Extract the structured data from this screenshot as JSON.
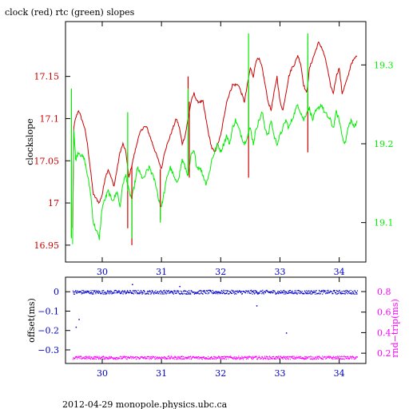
{
  "title": "clock (red) rtc (green) slopes",
  "footer": "2012-04-29 monopole.physics.ubc.ca",
  "colors": {
    "clock": "#cc0000",
    "rtc": "#00ee00",
    "offset": "#0000cc",
    "rndtrip": "#ff00ff",
    "axis": "#000000"
  },
  "chart_data": [
    {
      "type": "line",
      "title": "clock (red) rtc (green) slopes",
      "xlim": [
        29.38,
        34.45
      ],
      "x_ticks": [
        30,
        31,
        32,
        33,
        34
      ],
      "x_tick_labels": [
        "30",
        "31",
        "32",
        "33",
        "34"
      ],
      "ylabel_left": "clockslope",
      "ylim_left": [
        16.93,
        17.215
      ],
      "y_ticks_left": [
        16.95,
        17,
        17.05,
        17.1,
        17.15
      ],
      "y_tick_labels_left": [
        "16.95",
        "17",
        "17.05",
        "17.1",
        "17.15"
      ],
      "ylim_right": [
        19.05,
        19.355
      ],
      "y_ticks_right": [
        19.1,
        19.2,
        19.3
      ],
      "y_tick_labels_right": [
        "19.1",
        "19.2",
        "19.3"
      ],
      "series": [
        {
          "name": "clock",
          "axis": "left",
          "x": [
            29.5,
            29.52,
            29.55,
            29.6,
            29.65,
            29.7,
            29.75,
            29.8,
            29.85,
            29.9,
            29.95,
            30.0,
            30.05,
            30.1,
            30.15,
            30.2,
            30.25,
            30.3,
            30.35,
            30.4,
            30.45,
            30.5,
            30.55,
            30.6,
            30.65,
            30.7,
            30.75,
            30.8,
            30.85,
            30.9,
            30.95,
            31.0,
            31.05,
            31.1,
            31.15,
            31.2,
            31.25,
            31.3,
            31.35,
            31.4,
            31.45,
            31.5,
            31.55,
            31.6,
            31.65,
            31.7,
            31.75,
            31.8,
            31.85,
            31.9,
            31.95,
            32.0,
            32.05,
            32.1,
            32.15,
            32.2,
            32.25,
            32.3,
            32.35,
            32.4,
            32.45,
            32.5,
            32.55,
            32.6,
            32.65,
            32.7,
            32.75,
            32.8,
            32.85,
            32.9,
            32.95,
            33.0,
            33.05,
            33.1,
            33.15,
            33.2,
            33.25,
            33.3,
            33.35,
            33.4,
            33.45,
            33.5,
            33.55,
            33.6,
            33.65,
            33.7,
            33.75,
            33.8,
            33.85,
            33.9,
            33.95,
            34.0,
            34.05,
            34.1,
            34.15,
            34.2,
            34.25,
            34.3
          ],
          "y": [
            16.97,
            17.09,
            17.1,
            17.11,
            17.1,
            17.09,
            17.07,
            17.04,
            17.01,
            17.005,
            17.0,
            17.01,
            17.03,
            17.04,
            17.03,
            17.02,
            17.04,
            17.06,
            17.07,
            17.06,
            17.03,
            17.045,
            17.06,
            17.075,
            17.085,
            17.09,
            17.09,
            17.08,
            17.07,
            17.06,
            17.05,
            17.04,
            17.06,
            17.07,
            17.08,
            17.09,
            17.1,
            17.09,
            17.07,
            17.08,
            17.1,
            17.12,
            17.13,
            17.12,
            17.12,
            17.12,
            17.1,
            17.08,
            17.065,
            17.06,
            17.07,
            17.08,
            17.1,
            17.12,
            17.13,
            17.14,
            17.14,
            17.14,
            17.13,
            17.12,
            17.14,
            17.16,
            17.15,
            17.17,
            17.17,
            17.16,
            17.14,
            17.12,
            17.11,
            17.13,
            17.15,
            17.12,
            17.11,
            17.13,
            17.15,
            17.16,
            17.165,
            17.175,
            17.165,
            17.14,
            17.13,
            17.16,
            17.17,
            17.18,
            17.19,
            17.185,
            17.175,
            17.16,
            17.14,
            17.13,
            17.15,
            17.16,
            17.13,
            17.14,
            17.15,
            17.165,
            17.17,
            17.175
          ]
        },
        {
          "name": "rtc",
          "axis": "right",
          "x": [
            29.5,
            29.52,
            29.55,
            29.6,
            29.65,
            29.7,
            29.75,
            29.8,
            29.85,
            29.9,
            29.95,
            30.0,
            30.05,
            30.1,
            30.15,
            30.2,
            30.25,
            30.3,
            30.35,
            30.4,
            30.45,
            30.5,
            30.55,
            30.6,
            30.65,
            30.7,
            30.75,
            30.8,
            30.85,
            30.9,
            30.95,
            31.0,
            31.05,
            31.1,
            31.15,
            31.2,
            31.25,
            31.3,
            31.35,
            31.4,
            31.45,
            31.5,
            31.55,
            31.6,
            31.65,
            31.7,
            31.75,
            31.8,
            31.85,
            31.9,
            31.95,
            32.0,
            32.05,
            32.1,
            32.15,
            32.2,
            32.25,
            32.3,
            32.35,
            32.4,
            32.45,
            32.5,
            32.55,
            32.6,
            32.65,
            32.7,
            32.75,
            32.8,
            32.85,
            32.9,
            32.95,
            33.0,
            33.05,
            33.1,
            33.15,
            33.2,
            33.25,
            33.3,
            33.35,
            33.4,
            33.45,
            33.5,
            33.55,
            33.6,
            33.65,
            33.7,
            33.75,
            33.8,
            33.85,
            33.9,
            33.95,
            34.0,
            34.05,
            34.1,
            34.15,
            34.2,
            34.25,
            34.3
          ],
          "y": [
            19.07,
            19.22,
            19.18,
            19.19,
            19.185,
            19.18,
            19.16,
            19.14,
            19.1,
            19.09,
            19.08,
            19.12,
            19.13,
            19.14,
            19.13,
            19.13,
            19.14,
            19.12,
            19.15,
            19.16,
            19.14,
            19.13,
            19.15,
            19.17,
            19.16,
            19.155,
            19.165,
            19.17,
            19.16,
            19.15,
            19.13,
            19.12,
            19.14,
            19.16,
            19.17,
            19.16,
            19.15,
            19.16,
            19.18,
            19.17,
            19.16,
            19.185,
            19.19,
            19.17,
            19.17,
            19.16,
            19.15,
            19.16,
            19.18,
            19.19,
            19.2,
            19.19,
            19.2,
            19.21,
            19.2,
            19.22,
            19.23,
            19.22,
            19.21,
            19.2,
            19.21,
            19.22,
            19.2,
            19.22,
            19.23,
            19.24,
            19.22,
            19.21,
            19.23,
            19.21,
            19.2,
            19.21,
            19.22,
            19.23,
            19.22,
            19.23,
            19.24,
            19.25,
            19.24,
            19.23,
            19.24,
            19.245,
            19.23,
            19.24,
            19.245,
            19.25,
            19.24,
            19.235,
            19.23,
            19.22,
            19.24,
            19.23,
            19.21,
            19.2,
            19.22,
            19.23,
            19.22,
            19.23
          ]
        }
      ],
      "spikes": {
        "clock": [
          {
            "x": 29.48,
            "from": 17.0,
            "to": 16.96
          },
          {
            "x": 30.43,
            "from": 17.06,
            "to": 16.97
          },
          {
            "x": 30.5,
            "from": 17.045,
            "to": 16.95
          },
          {
            "x": 30.98,
            "from": 17.04,
            "to": 16.98
          },
          {
            "x": 31.45,
            "from": 17.1,
            "to": 17.15
          },
          {
            "x": 31.47,
            "from": 17.12,
            "to": 17.03
          },
          {
            "x": 32.47,
            "from": 17.14,
            "to": 17.03
          },
          {
            "x": 33.47,
            "from": 17.13,
            "to": 17.06
          }
        ],
        "rtc": [
          {
            "x": 29.48,
            "from": 19.08,
            "to": 19.27
          },
          {
            "x": 30.43,
            "from": 19.14,
            "to": 19.24
          },
          {
            "x": 30.5,
            "from": 19.13,
            "to": 19.08
          },
          {
            "x": 30.98,
            "from": 19.12,
            "to": 19.1
          },
          {
            "x": 31.45,
            "from": 19.16,
            "to": 19.27
          },
          {
            "x": 32.47,
            "from": 19.21,
            "to": 19.34
          },
          {
            "x": 33.47,
            "from": 19.24,
            "to": 19.34
          }
        ]
      }
    },
    {
      "type": "scatter",
      "xlim": [
        29.38,
        34.45
      ],
      "x_ticks": [
        30,
        31,
        32,
        33,
        34
      ],
      "x_tick_labels": [
        "30",
        "31",
        "32",
        "33",
        "34"
      ],
      "ylabel_left": "offset(ms)",
      "ylim_left": [
        -0.37,
        0.075
      ],
      "y_ticks_left": [
        0,
        -0.1,
        -0.2,
        -0.3
      ],
      "y_tick_labels_left": [
        "0",
        "−0.1",
        "−0.2",
        "−0.3"
      ],
      "ylabel_right": "rnd−trip(ms)",
      "ylim_right": [
        0.1,
        0.94
      ],
      "y_ticks_right": [
        0.2,
        0.4,
        0.6,
        0.8
      ],
      "y_tick_labels_right": [
        "0.2",
        "0.4",
        "0.6",
        "0.8"
      ],
      "series": [
        {
          "name": "offset",
          "axis": "left",
          "x_range": [
            29.5,
            34.3
          ],
          "y_center": 0.0,
          "y_spread": 0.01
        },
        {
          "name": "rnd-trip",
          "axis": "right",
          "x_range": [
            29.5,
            34.3
          ],
          "y_center": 0.16,
          "y_spread": 0.015
        }
      ],
      "outliers_offset": [
        {
          "x": 29.55,
          "y": -0.18
        },
        {
          "x": 29.6,
          "y": -0.14
        },
        {
          "x": 30.5,
          "y": 0.04
        },
        {
          "x": 31.3,
          "y": 0.03
        },
        {
          "x": 32.6,
          "y": -0.07
        },
        {
          "x": 33.1,
          "y": -0.21
        }
      ]
    }
  ]
}
